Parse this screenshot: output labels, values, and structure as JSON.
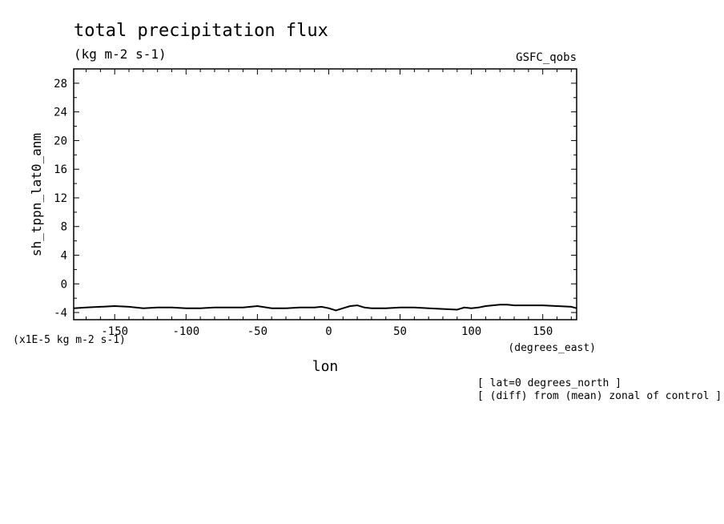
{
  "chart_data": {
    "type": "line",
    "title": "total precipitation flux",
    "units_label": "(kg m-2 s-1)",
    "source_label": "GSFC_qobs",
    "ylabel": "sh_tppn_lat0_anm",
    "yscale_label": "(x1E-5 kg m-2 s-1)",
    "xlabel": "lon",
    "xunits_label": "(degrees_east)",
    "notes": [
      "[ lat=0 degrees_north ]",
      "[ (diff) from (mean) zonal of control ]"
    ],
    "xlim": [
      -178.75,
      173.75
    ],
    "ylim": [
      -5,
      30
    ],
    "xticks": [
      -150,
      -100,
      -50,
      0,
      50,
      100,
      150
    ],
    "xtick_labels": [
      "-150",
      "-100",
      "-50",
      "0",
      "50",
      "100",
      "150"
    ],
    "yticks": [
      -4,
      0,
      4,
      8,
      12,
      16,
      20,
      24,
      28
    ],
    "ytick_labels": [
      "-4",
      "0",
      "4",
      "8",
      "12",
      "16",
      "20",
      "24",
      "28"
    ],
    "series": [
      {
        "x": [
          -178.75,
          -170,
          -160,
          -150,
          -140,
          -130,
          -120,
          -110,
          -100,
          -90,
          -80,
          -70,
          -60,
          -50,
          -40,
          -30,
          -20,
          -10,
          -5,
          0,
          5,
          10,
          15,
          20,
          25,
          30,
          40,
          50,
          60,
          70,
          80,
          90,
          95,
          100,
          105,
          110,
          115,
          120,
          125,
          130,
          140,
          150,
          160,
          170,
          173.75
        ],
        "y": [
          -3.4,
          -3.3,
          -3.2,
          -3.1,
          -3.2,
          -3.4,
          -3.3,
          -3.3,
          -3.4,
          -3.4,
          -3.3,
          -3.3,
          -3.3,
          -3.1,
          -3.4,
          -3.4,
          -3.3,
          -3.3,
          -3.2,
          -3.4,
          -3.7,
          -3.4,
          -3.1,
          -3.0,
          -3.3,
          -3.4,
          -3.4,
          -3.3,
          -3.3,
          -3.4,
          -3.5,
          -3.6,
          -3.3,
          -3.4,
          -3.3,
          -3.1,
          -3.0,
          -2.9,
          -2.9,
          -3.0,
          -3.0,
          -3.0,
          -3.1,
          -3.2,
          -3.4
        ]
      }
    ]
  }
}
